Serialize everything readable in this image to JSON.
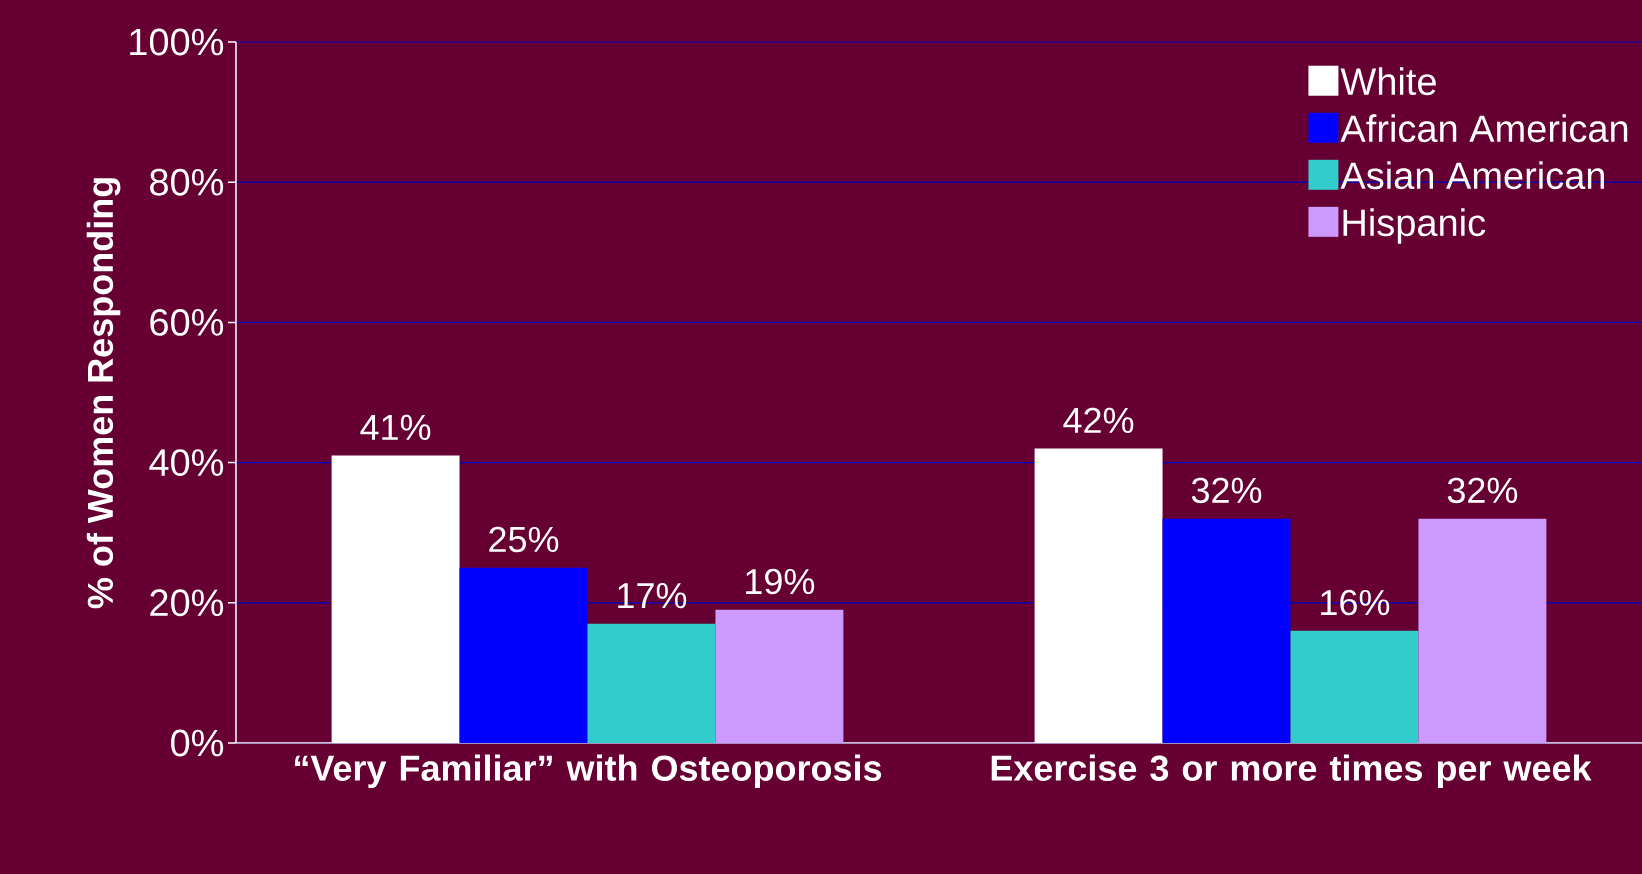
{
  "chart_data": {
    "type": "bar",
    "ylabel": "% of Women Responding",
    "categories": [
      "“Very Familiar” with Osteoporosis",
      "Exercise 3 or more times per week"
    ],
    "series": [
      {
        "name": "White",
        "color": "#ffffff",
        "values": [
          41,
          42
        ],
        "value_labels": [
          "41%",
          "42%"
        ]
      },
      {
        "name": "African American",
        "color": "#0000ff",
        "values": [
          25,
          32
        ],
        "value_labels": [
          "25%",
          "32%"
        ]
      },
      {
        "name": "Asian American",
        "color": "#33cccc",
        "values": [
          17,
          16
        ],
        "value_labels": [
          "17%",
          "16%"
        ]
      },
      {
        "name": "Hispanic",
        "color": "#cc99ff",
        "values": [
          19,
          32
        ],
        "value_labels": [
          "19%",
          "32%"
        ]
      }
    ],
    "ylim": [
      0,
      100
    ],
    "yticks": [
      {
        "value": 0,
        "label": "0%"
      },
      {
        "value": 20,
        "label": "20%"
      },
      {
        "value": 40,
        "label": "40%"
      },
      {
        "value": 60,
        "label": "60%"
      },
      {
        "value": 80,
        "label": "80%"
      },
      {
        "value": 100,
        "label": "100%"
      }
    ],
    "grid": "y",
    "legend": "top right"
  }
}
